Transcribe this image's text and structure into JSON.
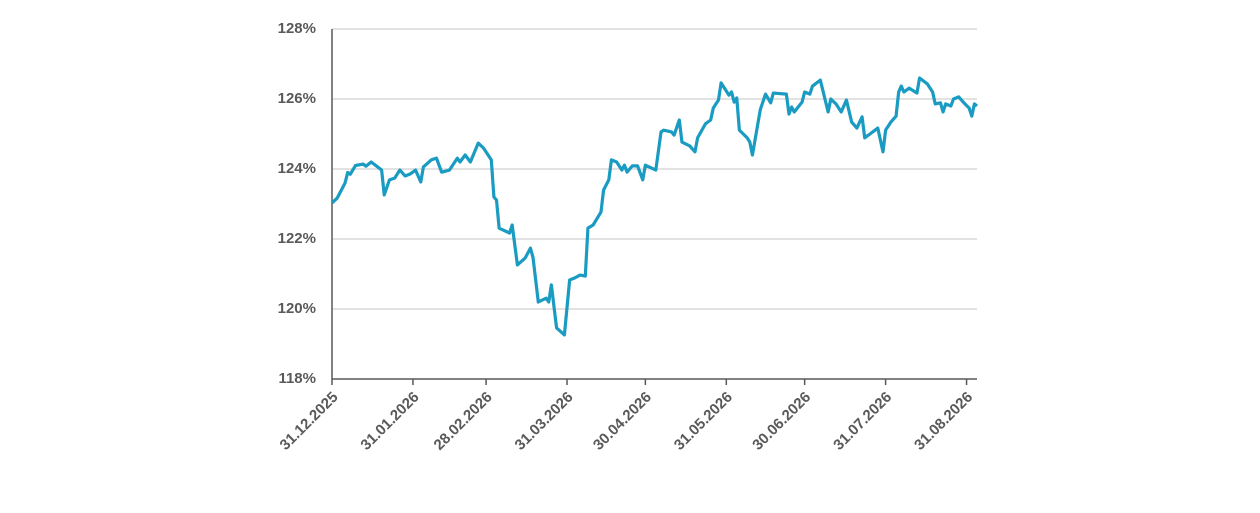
{
  "chart_data": {
    "type": "line",
    "x": [
      "31.12.2025",
      "02.01.2026",
      "05.01.2026",
      "06.01.2026",
      "07.01.2026",
      "09.01.2026",
      "12.01.2026",
      "13.01.2026",
      "15.01.2026",
      "18.01.2026",
      "19.01.2026",
      "20.01.2026",
      "22.01.2026",
      "24.01.2026",
      "26.01.2026",
      "28.01.2026",
      "30.01.2026",
      "01.02.2026",
      "03.02.2026",
      "04.02.2026",
      "07.02.2026",
      "09.02.2026",
      "11.02.2026",
      "14.02.2026",
      "17.02.2026",
      "18.02.2026",
      "20.02.2026",
      "22.02.2026",
      "25.02.2026",
      "27.02.2026",
      "02.03.2026",
      "03.03.2026",
      "04.03.2026",
      "05.03.2026",
      "09.03.2026",
      "10.03.2026",
      "12.03.2026",
      "15.03.2026",
      "17.03.2026",
      "18.03.2026",
      "20.03.2026",
      "23.03.2026",
      "24.03.2026",
      "25.03.2026",
      "27.03.2026",
      "30.03.2026",
      "01.04.2026",
      "03.04.2026",
      "05.04.2026",
      "07.04.2026",
      "08.04.2026",
      "10.04.2026",
      "13.04.2026",
      "14.04.2026",
      "16.04.2026",
      "17.04.2026",
      "19.04.2026",
      "21.04.2026",
      "22.04.2026",
      "23.04.2026",
      "25.04.2026",
      "27.04.2026",
      "29.04.2026",
      "30.04.2026",
      "04.05.2026",
      "06.05.2026",
      "07.05.2026",
      "10.05.2026",
      "11.05.2026",
      "13.05.2026",
      "14.05.2026",
      "17.05.2026",
      "19.05.2026",
      "20.05.2026",
      "23.05.2026",
      "25.05.2026",
      "26.05.2026",
      "28.05.2026",
      "29.05.2026",
      "01.06.2026",
      "02.06.2026",
      "03.06.2026",
      "04.06.2026",
      "05.06.2026",
      "08.06.2026",
      "09.06.2026",
      "10.06.2026",
      "12.06.2026",
      "13.06.2026",
      "15.06.2026",
      "17.06.2026",
      "18.06.2026",
      "23.06.2026",
      "24.06.2026",
      "25.06.2026",
      "26.06.2026",
      "29.06.2026",
      "30.06.2026",
      "02.07.2026",
      "03.07.2026",
      "06.07.2026",
      "09.07.2026",
      "10.07.2026",
      "12.07.2026",
      "14.07.2026",
      "16.07.2026",
      "18.07.2026",
      "20.07.2026",
      "22.07.2026",
      "23.07.2026",
      "25.07.2026",
      "28.07.2026",
      "30.07.2026",
      "31.07.2026",
      "02.08.2026",
      "04.08.2026",
      "05.08.2026",
      "06.08.2026",
      "07.08.2026",
      "09.08.2026",
      "12.08.2026",
      "13.08.2026",
      "16.08.2026",
      "18.08.2026",
      "19.08.2026",
      "21.08.2026",
      "22.08.2026",
      "23.08.2026",
      "25.08.2026",
      "26.08.2026",
      "28.08.2026",
      "30.08.2026",
      "01.09.2026",
      "02.09.2026",
      "03.09.2026",
      "04.09.2026"
    ],
    "series": [
      {
        "color": "#1a9bc2",
        "values": [
          123.03,
          123.17,
          123.6,
          123.9,
          123.85,
          124.1,
          124.14,
          124.08,
          124.2,
          124.03,
          123.97,
          123.26,
          123.69,
          123.74,
          123.97,
          123.8,
          123.86,
          123.97,
          123.63,
          124.06,
          124.26,
          124.31,
          123.91,
          123.97,
          124.31,
          124.2,
          124.4,
          124.2,
          124.74,
          124.6,
          124.26,
          123.2,
          123.11,
          122.31,
          122.17,
          122.4,
          121.26,
          121.46,
          121.74,
          121.46,
          120.2,
          120.31,
          120.2,
          120.69,
          119.46,
          119.26,
          120.83,
          120.89,
          120.97,
          120.94,
          122.31,
          122.4,
          122.77,
          123.4,
          123.69,
          124.26,
          124.2,
          123.97,
          124.11,
          123.91,
          124.09,
          124.09,
          123.69,
          124.11,
          123.97,
          125.06,
          125.11,
          125.06,
          124.97,
          125.4,
          124.77,
          124.66,
          124.49,
          124.89,
          125.29,
          125.4,
          125.74,
          125.97,
          126.46,
          126.11,
          126.2,
          125.91,
          126.03,
          125.11,
          124.89,
          124.77,
          124.4,
          125.26,
          125.69,
          126.14,
          125.89,
          126.17,
          126.14,
          125.57,
          125.77,
          125.63,
          125.91,
          126.2,
          126.14,
          126.37,
          126.54,
          125.63,
          126.0,
          125.86,
          125.63,
          125.97,
          125.34,
          125.17,
          125.49,
          124.89,
          125.0,
          125.17,
          124.49,
          125.11,
          125.34,
          125.51,
          126.2,
          126.37,
          126.2,
          126.31,
          126.17,
          126.6,
          126.43,
          126.2,
          125.86,
          125.89,
          125.63,
          125.86,
          125.8,
          126.0,
          126.06,
          125.89,
          125.74,
          125.51,
          125.86,
          125.8
        ]
      }
    ],
    "xlim": [
      "31.12.2025",
      "04.09.2026"
    ],
    "xticks": [
      "31.12.2025",
      "31.01.2026",
      "28.02.2026",
      "31.03.2026",
      "30.04.2026",
      "31.05.2026",
      "30.06.2026",
      "31.07.2026",
      "31.08.2026"
    ],
    "ylim": [
      118,
      128
    ],
    "yticks": [
      {
        "value": 118,
        "label": "118%"
      },
      {
        "value": 120,
        "label": "120%"
      },
      {
        "value": 122,
        "label": "122%"
      },
      {
        "value": 124,
        "label": "124%"
      },
      {
        "value": 126,
        "label": "126%"
      },
      {
        "value": 128,
        "label": "128%"
      }
    ],
    "grid": true
  }
}
